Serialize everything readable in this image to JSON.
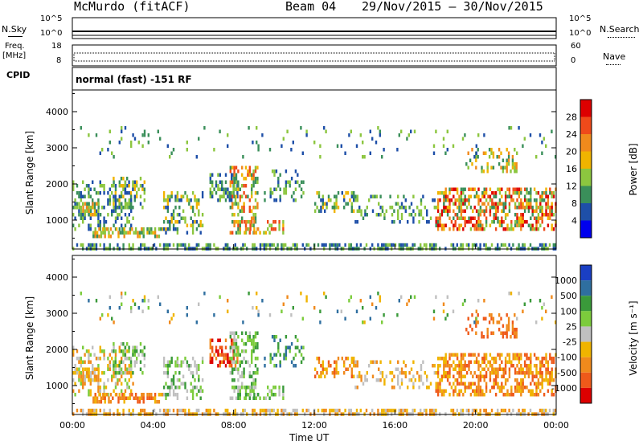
{
  "header": {
    "site": "McMurdo (fitACF)",
    "beam": "Beam 04",
    "dates": "29/Nov/2015 – 30/Nov/2015"
  },
  "panels": {
    "nsky": {
      "left_label": "N.Sky",
      "right_label": "N.Search",
      "ticks_left": [
        "10^5",
        "10^0"
      ],
      "ticks_right": [
        "10^5",
        "10^0"
      ]
    },
    "freq": {
      "left_label_line1": "Freq.",
      "left_label_line2": "[MHz]",
      "right_label": "Nave",
      "ticks_left": [
        "18",
        "8"
      ],
      "ticks_right": [
        "60",
        "0"
      ]
    },
    "cpid": {
      "left_label": "CPID",
      "text": "normal (fast) -151 RF"
    }
  },
  "chart_data": [
    {
      "type": "heatmap",
      "name": "power",
      "ylabel": "Slant Range [km]",
      "yticks": [
        1000,
        2000,
        3000,
        4000
      ],
      "ylim": [
        200,
        4600
      ],
      "colorbar_label": "Power [dB]",
      "colorbar_ticks": [
        "4",
        "8",
        "12",
        "16",
        "20",
        "24",
        "28"
      ],
      "colors": [
        "#0000ee",
        "#1e4fa8",
        "#3a8f5a",
        "#8cc63f",
        "#f0b400",
        "#f08a1c",
        "#ef4a1a",
        "#dd0000"
      ]
    },
    {
      "type": "heatmap",
      "name": "velocity",
      "ylabel": "Slant Range [km]",
      "xlabel": "Time UT",
      "yticks": [
        1000,
        2000,
        3000,
        4000
      ],
      "ylim": [
        200,
        4600
      ],
      "xticks": [
        "00:00",
        "04:00",
        "08:00",
        "12:00",
        "16:00",
        "20:00",
        "00:00"
      ],
      "xlim_hours": [
        0,
        24
      ],
      "colorbar_label": "Velocity [m s⁻¹]",
      "colorbar_ticks": [
        "1000",
        "500",
        "100",
        "25",
        "-25",
        "-100",
        "-500",
        "-1000"
      ],
      "colors": [
        "#1a3fc4",
        "#2f6fa0",
        "#3a9a3a",
        "#7ccc3c",
        "#c0c0c0",
        "#f0b400",
        "#f08a1c",
        "#ef5a1a",
        "#dd0000"
      ]
    }
  ]
}
